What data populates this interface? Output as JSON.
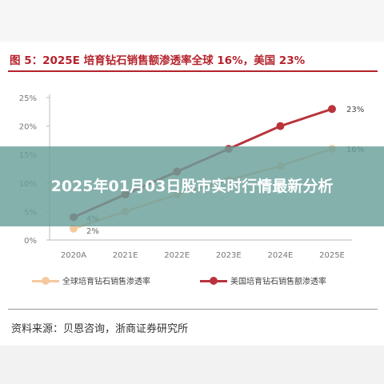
{
  "figure": {
    "title": "图 5：2025E 培育钻石销售额渗透率全球 16%，美国 23%",
    "source": "资料来源：贝恩咨询，浙商证券研究所"
  },
  "overlay": {
    "headline": "2025年01月03日股市实时行情最新分析"
  },
  "colors": {
    "title_red": "#b5232c",
    "global_series": "#f5c9a0",
    "us_series": "#b8343c",
    "axis_text": "#777777"
  },
  "chart_data": {
    "type": "line",
    "categories": [
      "2020A",
      "2021E",
      "2022E",
      "2023E",
      "2024E",
      "2025E"
    ],
    "ylim": [
      0,
      25
    ],
    "yticks": [
      "0%",
      "5%",
      "10%",
      "15%",
      "20%",
      "25%"
    ],
    "grid": false,
    "legend_position": "bottom",
    "series": [
      {
        "name": "全球培育钻石销售渗透率",
        "values": [
          2,
          5,
          8,
          10.5,
          13,
          16
        ],
        "end_label": "16%",
        "start_label": "2%"
      },
      {
        "name": "美国培育钻石销售额渗透率",
        "values": [
          4,
          8,
          12,
          16,
          20,
          23
        ],
        "end_label": "23%",
        "start_label": "4%"
      }
    ]
  }
}
